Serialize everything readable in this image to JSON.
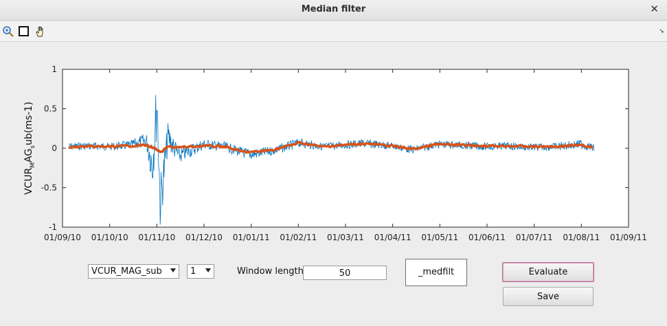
{
  "window": {
    "title": "Median filter"
  },
  "toolbar": {
    "tools": [
      "zoom-in-icon",
      "select-rectangle-icon",
      "pan-hand-icon"
    ]
  },
  "chart_data": {
    "type": "line",
    "ylabel": "VCUR_MAG_sub(ms-1)",
    "ylabel_parts": {
      "a": "VCUR",
      "b": "M",
      "c": "AG",
      "d": "s",
      "e": "ub(ms-1)"
    },
    "ylim": [
      -1,
      1
    ],
    "yticks": [
      {
        "value": 1,
        "label": "1"
      },
      {
        "value": 0.5,
        "label": "0.5"
      },
      {
        "value": 0,
        "label": "0"
      },
      {
        "value": -0.5,
        "label": "-0.5"
      },
      {
        "value": -1,
        "label": "-1"
      }
    ],
    "xticks": [
      "01/09/10",
      "01/10/10",
      "01/11/10",
      "01/12/10",
      "01/01/11",
      "01/02/11",
      "01/03/11",
      "01/04/11",
      "01/05/11",
      "01/06/11",
      "01/07/11",
      "01/08/11",
      "01/09/11"
    ],
    "xlim": [
      "2010-09-01",
      "2011-09-01"
    ],
    "series": [
      {
        "color": "#0072bd",
        "kind": "raw",
        "x": [
          "2010-09-05",
          "2010-09-15",
          "2010-10-01",
          "2010-10-15",
          "2010-10-25",
          "2010-10-29",
          "2010-11-01",
          "2010-11-03",
          "2010-11-08",
          "2010-11-15",
          "2010-12-01",
          "2010-12-15",
          "2010-12-25",
          "2011-01-01",
          "2011-01-15",
          "2011-02-01",
          "2011-02-15",
          "2011-03-01",
          "2011-03-15",
          "2011-04-01",
          "2011-04-15",
          "2011-05-01",
          "2011-05-15",
          "2011-06-01",
          "2011-06-15",
          "2011-07-01",
          "2011-07-15",
          "2011-08-01",
          "2011-08-10"
        ],
        "y": [
          0.02,
          0.03,
          0.02,
          0.04,
          0.1,
          -0.2,
          0.6,
          -0.7,
          0.15,
          -0.1,
          0.05,
          0.02,
          -0.05,
          -0.08,
          -0.03,
          0.07,
          0.02,
          0.04,
          0.06,
          0.03,
          -0.02,
          0.05,
          0.04,
          0.02,
          0.03,
          0.01,
          0.02,
          0.05,
          0.0
        ],
        "spread": [
          0.05,
          0.05,
          0.05,
          0.06,
          0.1,
          0.3,
          0.4,
          0.35,
          0.18,
          0.1,
          0.07,
          0.06,
          0.07,
          0.07,
          0.06,
          0.06,
          0.05,
          0.05,
          0.06,
          0.05,
          0.05,
          0.05,
          0.05,
          0.05,
          0.05,
          0.05,
          0.05,
          0.06,
          0.05
        ]
      },
      {
        "color": "#d95319",
        "kind": "filtered",
        "x": [
          "2010-09-05",
          "2010-09-15",
          "2010-10-01",
          "2010-10-15",
          "2010-10-25",
          "2010-10-29",
          "2010-11-01",
          "2010-11-03",
          "2010-11-08",
          "2010-11-15",
          "2010-12-01",
          "2010-12-15",
          "2010-12-25",
          "2011-01-01",
          "2011-01-15",
          "2011-02-01",
          "2011-02-15",
          "2011-03-01",
          "2011-03-15",
          "2011-04-01",
          "2011-04-15",
          "2011-05-01",
          "2011-05-15",
          "2011-06-01",
          "2011-06-15",
          "2011-07-01",
          "2011-07-15",
          "2011-08-01",
          "2011-08-10"
        ],
        "y": [
          0.01,
          0.02,
          0.02,
          0.03,
          0.04,
          0.01,
          -0.02,
          -0.06,
          0.02,
          0.01,
          0.03,
          0.02,
          -0.04,
          -0.05,
          -0.02,
          0.07,
          0.02,
          0.04,
          0.06,
          0.03,
          -0.01,
          0.05,
          0.04,
          0.03,
          0.03,
          0.02,
          0.02,
          0.04,
          0.0
        ]
      }
    ]
  },
  "controls": {
    "variable_select": {
      "value": "VCUR_MAG_sub"
    },
    "index_select": {
      "value": "1"
    },
    "window_length": {
      "label": "Window length",
      "value": "50"
    },
    "suffix": {
      "value": "_medfilt"
    },
    "evaluate_label": "Evaluate",
    "save_label": "Save"
  }
}
